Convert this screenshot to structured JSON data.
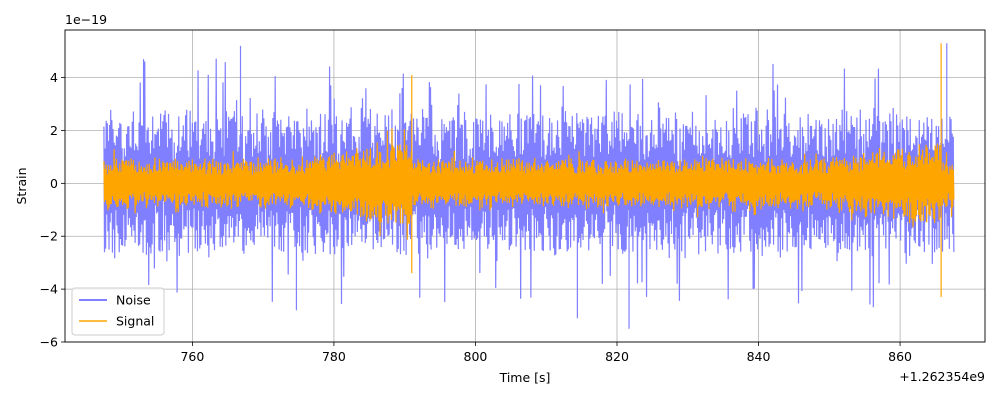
{
  "chart_data": {
    "type": "line",
    "xlabel": "Time [s]",
    "ylabel": "Strain",
    "x_offset_label": "+1.262354e9",
    "y_scale_label": "1e−19",
    "xlim": [
      742,
      872
    ],
    "ylim": [
      -6,
      5.8
    ],
    "x_ticks": [
      760,
      780,
      800,
      820,
      840,
      860
    ],
    "x_tick_labels": [
      "760",
      "780",
      "800",
      "820",
      "840",
      "860"
    ],
    "y_ticks": [
      -6,
      -4,
      -2,
      0,
      2,
      4
    ],
    "y_tick_labels": [
      "−6",
      "−4",
      "−2",
      "0",
      "2",
      "4"
    ],
    "grid": true,
    "legend_position": "lower-left",
    "x_range": [
      747.5,
      867.6
    ],
    "series": [
      {
        "name": "Noise",
        "color": "#7f7fff",
        "typical_amplitude": 2.0,
        "peak_max": 5.3,
        "peak_min": -5.5,
        "spikes": [
          {
            "x": 766.8,
            "value": 5.2
          },
          {
            "x": 753.1,
            "value": 4.7
          },
          {
            "x": 821.7,
            "value": -5.5
          },
          {
            "x": 814.4,
            "value": -5.1
          },
          {
            "x": 774.7,
            "value": -4.8
          },
          {
            "x": 866.6,
            "value": 5.3
          }
        ]
      },
      {
        "name": "Signal",
        "color": "#ffa500",
        "typical_amplitude": 0.85,
        "spikes": [
          {
            "x": 791.0,
            "value": 4.1
          },
          {
            "x": 791.0,
            "value": -3.4
          },
          {
            "x": 865.8,
            "value": 5.3
          },
          {
            "x": 865.8,
            "value": -4.3
          }
        ]
      }
    ]
  }
}
